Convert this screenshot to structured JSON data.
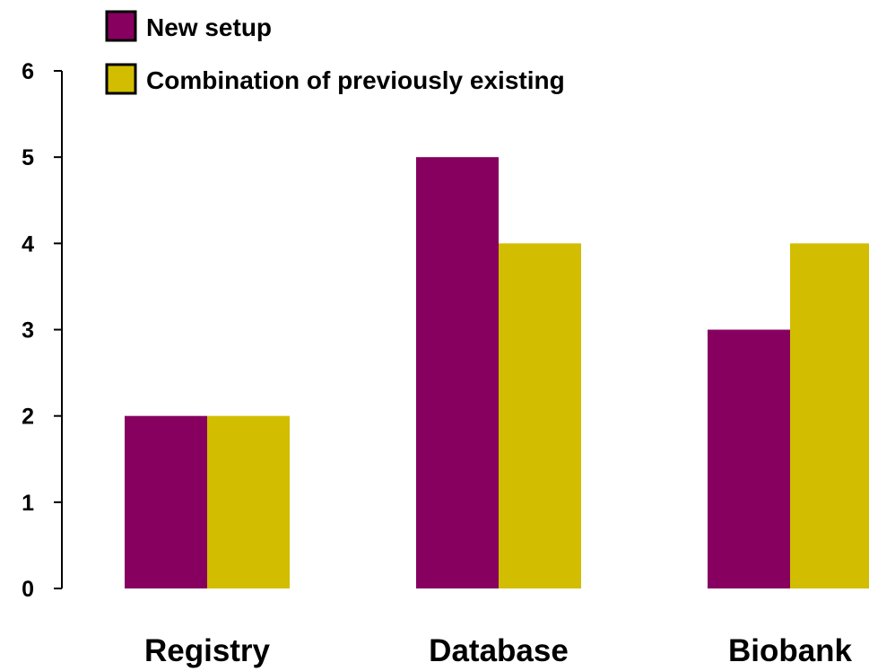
{
  "chart_data": {
    "type": "bar",
    "title": "",
    "xlabel": "",
    "ylabel": "",
    "categories": [
      "Registry",
      "Database",
      "Biobank"
    ],
    "series": [
      {
        "name": "New setup",
        "values": [
          2,
          5,
          3
        ],
        "color": "#870060"
      },
      {
        "name": "Combination of previously existing",
        "values": [
          2,
          4,
          4
        ],
        "color": "#d2bd00"
      }
    ],
    "ylim": [
      0,
      6
    ],
    "yticks": [
      "0",
      "1",
      "2",
      "3",
      "4",
      "5",
      "6"
    ],
    "grid": false,
    "legend_position": "top-left"
  }
}
